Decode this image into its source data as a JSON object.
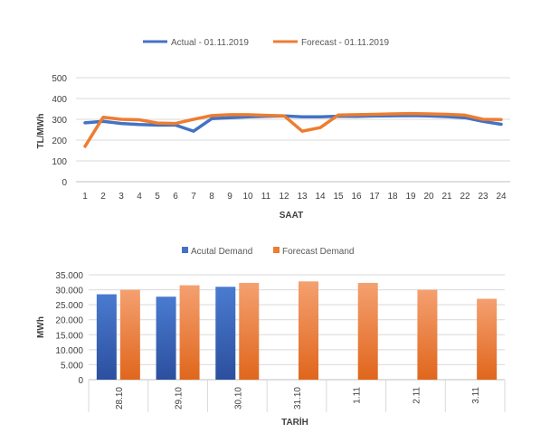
{
  "chart_data": [
    {
      "type": "line",
      "title": "",
      "xlabel": "SAAT",
      "ylabel": "TL/MWh",
      "ylim": [
        0,
        500
      ],
      "yticks": [
        0,
        100,
        200,
        300,
        400,
        500
      ],
      "x": [
        1,
        2,
        3,
        4,
        5,
        6,
        7,
        8,
        9,
        10,
        11,
        12,
        13,
        14,
        15,
        16,
        17,
        18,
        19,
        20,
        21,
        22,
        23,
        24
      ],
      "series": [
        {
          "name": "Actual - 01.11.2019",
          "color": "#4472C4",
          "values": [
            283,
            290,
            280,
            275,
            272,
            272,
            243,
            303,
            308,
            312,
            315,
            316,
            312,
            312,
            315,
            314,
            316,
            317,
            318,
            316,
            313,
            308,
            290,
            276
          ]
        },
        {
          "name": "Forecast - 01.11.2019",
          "color": "#ED7D31",
          "values": [
            170,
            310,
            300,
            298,
            282,
            280,
            300,
            318,
            322,
            322,
            319,
            317,
            243,
            260,
            321,
            322,
            324,
            326,
            328,
            326,
            324,
            320,
            300,
            299
          ]
        }
      ]
    },
    {
      "type": "bar",
      "title": "",
      "xlabel": "TARİH",
      "ylabel": "MWh",
      "ylim": [
        0,
        35000
      ],
      "yticks": [
        "0",
        "5.000",
        "10.000",
        "15.000",
        "20.000",
        "25.000",
        "30.000",
        "35.000"
      ],
      "categories": [
        "28.10",
        "29.10",
        "30.10",
        "31.10",
        "1.11",
        "2.11",
        "3.11"
      ],
      "series": [
        {
          "name": "Acutal Demand",
          "color": "#4472C4",
          "values": [
            28500,
            27700,
            31000,
            null,
            null,
            null,
            null
          ]
        },
        {
          "name": "Forecast Demand",
          "color": "#ED7D31",
          "values": [
            30000,
            31500,
            32300,
            32800,
            32300,
            30000,
            27000
          ]
        }
      ]
    }
  ]
}
